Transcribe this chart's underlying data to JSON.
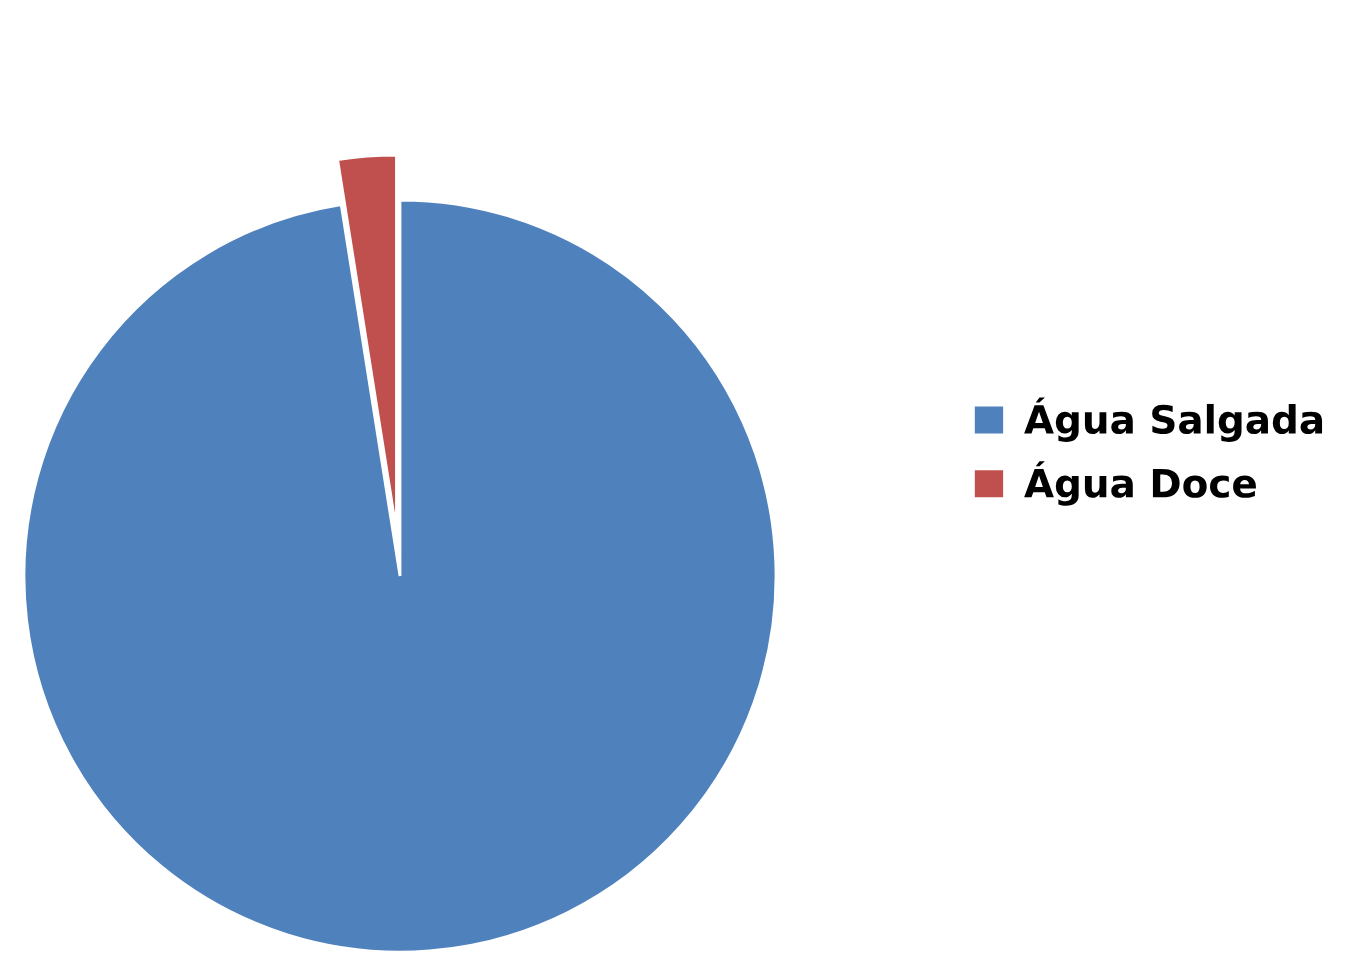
{
  "chart_data": {
    "type": "pie",
    "categories": [
      "Água Salgada",
      "Água Doce"
    ],
    "values": [
      97.5,
      2.5
    ],
    "colors": [
      "#4f81bd",
      "#c0504d"
    ],
    "legend": "right"
  }
}
